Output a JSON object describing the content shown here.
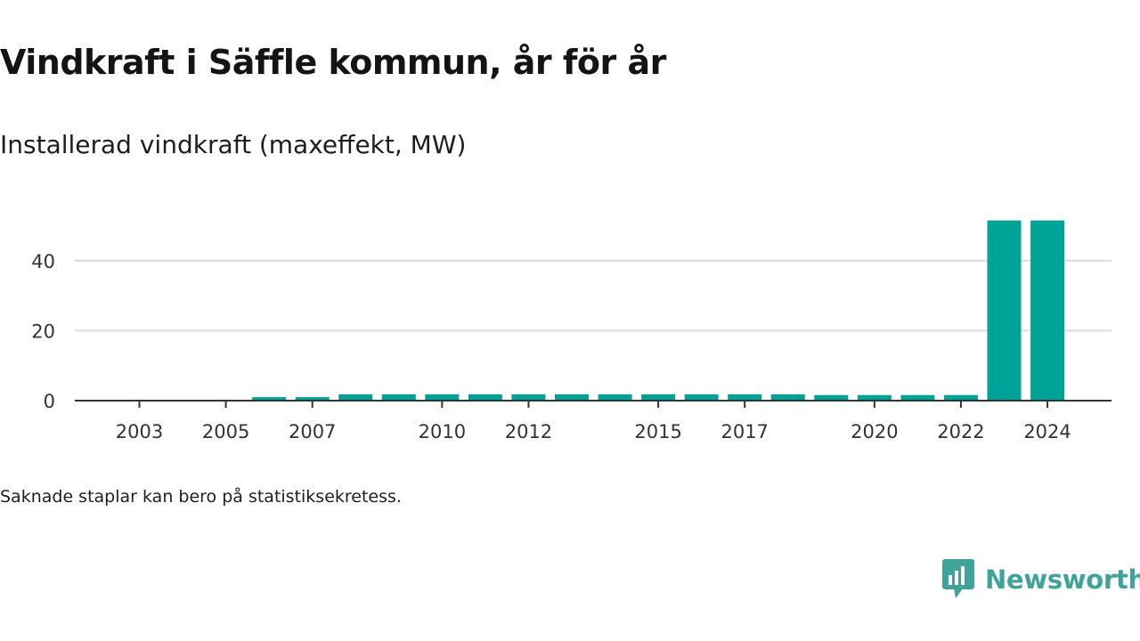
{
  "title": "Vindkraft i Säffle kommun, år för år",
  "subtitle": "Installerad vindkraft (maxeffekt, MW)",
  "footnote": "Saknade staplar kan bero på statistiksekretess.",
  "brand": "Newsworthy",
  "colors": {
    "bar": "#00A398",
    "grid": "#dcdcdc",
    "axis": "#333333",
    "brand": "#3fa39a"
  },
  "chart_data": {
    "type": "bar",
    "title": "Vindkraft i Säffle kommun, år för år",
    "subtitle": "Installerad vindkraft (maxeffekt, MW)",
    "xlabel": "",
    "ylabel": "",
    "categories": [
      "2003",
      "2004",
      "2005",
      "2006",
      "2007",
      "2008",
      "2009",
      "2010",
      "2011",
      "2012",
      "2013",
      "2014",
      "2015",
      "2016",
      "2017",
      "2018",
      "2019",
      "2020",
      "2021",
      "2022",
      "2023",
      "2024"
    ],
    "values": [
      0,
      0,
      0,
      1,
      1,
      1.8,
      1.8,
      1.8,
      1.8,
      1.8,
      1.8,
      1.8,
      1.8,
      1.8,
      1.8,
      1.8,
      1.6,
      1.6,
      1.6,
      1.6,
      51.5,
      51.5
    ],
    "x_tick_labels": [
      "2003",
      "2005",
      "2007",
      "2010",
      "2012",
      "2015",
      "2017",
      "2020",
      "2022",
      "2024"
    ],
    "y_ticks": [
      0,
      20,
      40
    ],
    "ylim": [
      0,
      55
    ],
    "grid": "horizontal",
    "legend": "none"
  }
}
